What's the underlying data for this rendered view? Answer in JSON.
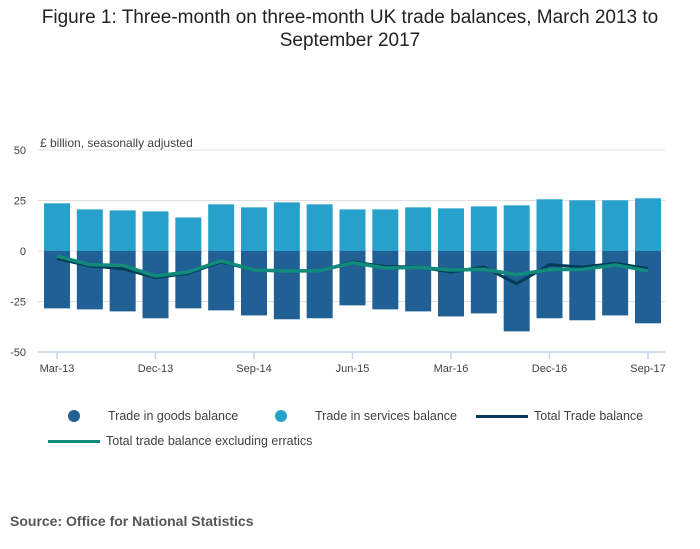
{
  "title": "Figure 1: Three-month on three-month UK trade balances, March 2013 to September 2017",
  "source": "Source: Office for National Statistics",
  "chart_data": {
    "type": "bar",
    "title": "Figure 1: Three-month on three-month UK trade balances, March 2013 to September 2017",
    "ylabel": "£ billion, seasonally adjusted",
    "xlabel": "",
    "ylim": [
      -50,
      50
    ],
    "yticks": [
      "50",
      "25",
      "0",
      "-25",
      "-50"
    ],
    "ytick_values": [
      50,
      25,
      0,
      -25,
      -50
    ],
    "grid": true,
    "stacked": true,
    "categories": [
      "Mar-13",
      "Jun-13",
      "Sep-13",
      "Dec-13",
      "Mar-14",
      "Jun-14",
      "Sep-14",
      "Dec-14",
      "Mar-15",
      "Jun-15",
      "Sep-15",
      "Dec-15",
      "Mar-16",
      "Jun-16",
      "Sep-16",
      "Dec-16",
      "Mar-17",
      "Jun-17",
      "Sep-17"
    ],
    "xtick_labels": [
      "Mar-13",
      "Dec-13",
      "Sep-14",
      "Jun-15",
      "Mar-16",
      "Dec-16",
      "Sep-17"
    ],
    "xtick_indices": [
      0,
      3,
      6,
      9,
      12,
      15,
      18
    ],
    "series": [
      {
        "name": "Trade in goods balance",
        "kind": "bar",
        "color": "#206095",
        "values": [
          -28.4,
          -28.9,
          -29.9,
          -33.3,
          -28.4,
          -29.4,
          -31.9,
          -33.8,
          -33.3,
          -26.9,
          -28.9,
          -29.9,
          -32.4,
          -30.9,
          -39.8,
          -33.3,
          -34.3,
          -31.9,
          -35.8
        ]
      },
      {
        "name": "Trade in services balance",
        "kind": "bar",
        "color": "#27a0cc",
        "values": [
          23.6,
          20.6,
          20.1,
          19.6,
          16.6,
          23.1,
          21.6,
          24.1,
          23.1,
          20.6,
          20.6,
          21.6,
          21.1,
          22.1,
          22.6,
          25.6,
          25.1,
          25.1,
          26.1
        ]
      },
      {
        "name": "Total Trade balance",
        "kind": "line",
        "color": "#003c57",
        "values": [
          -3.8,
          -7.4,
          -8.7,
          -13.2,
          -11.0,
          -5.4,
          -9.4,
          -9.9,
          -9.8,
          -5.4,
          -7.7,
          -7.9,
          -10.4,
          -7.9,
          -16.2,
          -6.8,
          -7.9,
          -6.1,
          -8.7
        ]
      },
      {
        "name": "Total trade balance excluding erratics",
        "kind": "line",
        "color": "#118c7b",
        "values": [
          -2.5,
          -6.8,
          -7.1,
          -12.4,
          -10.4,
          -4.9,
          -9.4,
          -9.9,
          -9.8,
          -5.8,
          -8.4,
          -8.1,
          -9.4,
          -9.1,
          -11.7,
          -9.2,
          -9.1,
          -6.9,
          -9.8
        ]
      }
    ],
    "legend_position": "bottom"
  }
}
